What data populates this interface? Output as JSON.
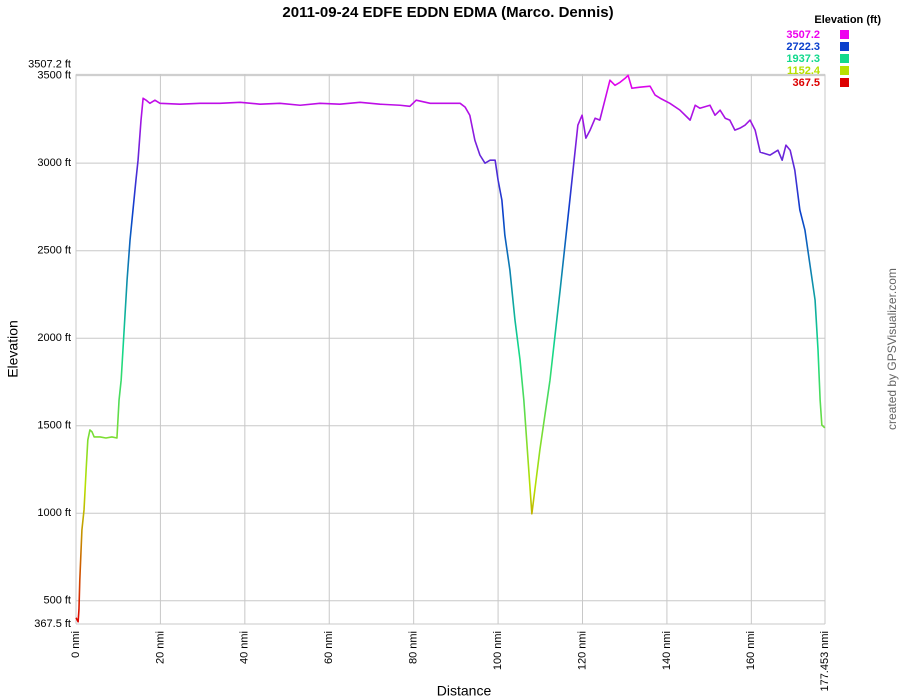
{
  "chart_data": {
    "type": "line",
    "title": "2011-09-24 EDFE EDDN EDMA (Marco. Dennis)",
    "x_label": "Distance",
    "y_label": "Elevation",
    "watermark": "created by GPSVisualizer.com",
    "color_scale": {
      "title": "Elevation (ft)",
      "values": [
        3507.2,
        2722.3,
        1937.3,
        1152.4,
        367.5
      ],
      "colors": [
        "#ee00ee",
        "#0a3fcc",
        "#11d98c",
        "#b8e000",
        "#dd0000"
      ]
    },
    "x": [
      0.0,
      0.5,
      0.7,
      0.9,
      1.4,
      1.9,
      2.4,
      2.8,
      3.3,
      3.8,
      4.3,
      5.7,
      7.1,
      8.5,
      9.7,
      10.2,
      10.7,
      11.4,
      12.1,
      12.8,
      13.5,
      14.2,
      14.7,
      15.4,
      15.9,
      16.6,
      17.5,
      18.7,
      19.9,
      24.6,
      29.4,
      34.1,
      38.9,
      43.6,
      48.3,
      53.1,
      57.8,
      62.5,
      67.3,
      72.0,
      76.8,
      79.1,
      80.6,
      83.9,
      88.6,
      91.0,
      92.2,
      93.3,
      94.5,
      95.7,
      96.9,
      98.1,
      99.3,
      100.0,
      100.9,
      101.6,
      102.8,
      104.0,
      105.2,
      106.1,
      107.1,
      108.0,
      109.9,
      112.3,
      114.7,
      117.0,
      118.9,
      119.9,
      120.8,
      121.8,
      123.0,
      124.1,
      125.3,
      126.5,
      127.7,
      128.9,
      130.1,
      130.8,
      131.7,
      133.6,
      136.0,
      137.2,
      138.4,
      140.7,
      143.1,
      145.5,
      146.7,
      147.8,
      150.2,
      151.4,
      152.6,
      153.8,
      154.9,
      156.1,
      157.3,
      158.5,
      159.7,
      160.9,
      162.1,
      164.4,
      166.3,
      167.3,
      168.2,
      169.2,
      170.3,
      171.5,
      172.7,
      173.9,
      175.1,
      175.8,
      176.3,
      176.7,
      177.4
    ],
    "values": [
      403,
      380,
      449,
      620,
      905,
      1019,
      1248,
      1419,
      1476,
      1465,
      1436,
      1436,
      1430,
      1436,
      1430,
      1647,
      1761,
      2047,
      2332,
      2561,
      2732,
      2903,
      3017,
      3245,
      3371,
      3360,
      3342,
      3360,
      3342,
      3337,
      3342,
      3342,
      3348,
      3337,
      3342,
      3331,
      3342,
      3337,
      3348,
      3337,
      3331,
      3325,
      3360,
      3342,
      3342,
      3342,
      3320,
      3274,
      3131,
      3046,
      3000,
      3017,
      3017,
      2903,
      2789,
      2589,
      2389,
      2104,
      1876,
      1647,
      1305,
      997,
      1362,
      1761,
      2275,
      2789,
      3217,
      3274,
      3143,
      3189,
      3257,
      3246,
      3360,
      3474,
      3445,
      3462,
      3485,
      3502,
      3428,
      3434,
      3440,
      3389,
      3371,
      3342,
      3303,
      3246,
      3331,
      3314,
      3331,
      3274,
      3303,
      3257,
      3246,
      3189,
      3200,
      3217,
      3246,
      3189,
      3063,
      3046,
      3074,
      3017,
      3103,
      3074,
      2960,
      2732,
      2618,
      2418,
      2218,
      1933,
      1647,
      1505,
      1488
    ],
    "xlim": [
      0,
      177.453
    ],
    "xticks": [
      {
        "value": 0,
        "label": "0 nmi"
      },
      {
        "value": 20,
        "label": "20 nmi"
      },
      {
        "value": 40,
        "label": "40 nmi"
      },
      {
        "value": 60,
        "label": "60 nmi"
      },
      {
        "value": 80,
        "label": "80 nmi"
      },
      {
        "value": 100,
        "label": "100 nmi"
      },
      {
        "value": 120,
        "label": "120 nmi"
      },
      {
        "value": 140,
        "label": "140 nmi"
      },
      {
        "value": 160,
        "label": "160 nmi"
      },
      {
        "value": 177.453,
        "label": "177.453 nmi"
      }
    ],
    "ylim": [
      367.5,
      3507.2
    ],
    "yticks": [
      {
        "value": 367.5,
        "label": "367.5 ft"
      },
      {
        "value": 500,
        "label": "500 ft"
      },
      {
        "value": 1000,
        "label": "1000 ft"
      },
      {
        "value": 1500,
        "label": "1500 ft"
      },
      {
        "value": 2000,
        "label": "2000 ft"
      },
      {
        "value": 2500,
        "label": "2500 ft"
      },
      {
        "value": 3000,
        "label": "3000 ft"
      },
      {
        "value": 3500,
        "label": "3500 ft"
      },
      {
        "value": 3507.2,
        "label": "3507.2 ft"
      }
    ],
    "grid": true
  }
}
